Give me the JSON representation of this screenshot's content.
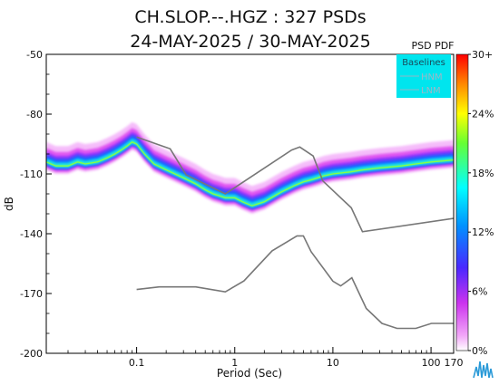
{
  "chart_data": {
    "type": "heatmap",
    "title": "CH.SLOP.--.HGZ : 327 PSDs",
    "subtitle": "24-MAY-2025 / 30-MAY-2025",
    "xlabel": "Period (Sec)",
    "ylabel": "dB",
    "xscale": "log",
    "xlim": [
      0.012,
      170
    ],
    "ylim": [
      -200,
      -50
    ],
    "x_ticks": [
      {
        "value": 0.1,
        "label": "0.1"
      },
      {
        "value": 1,
        "label": "1"
      },
      {
        "value": 10,
        "label": "10"
      },
      {
        "value": 100,
        "label": "100"
      },
      {
        "value": 170,
        "label": "170"
      }
    ],
    "y_ticks": [
      {
        "value": -50,
        "label": "-50"
      },
      {
        "value": -80,
        "label": "-80"
      },
      {
        "value": -110,
        "label": "-110"
      },
      {
        "value": -140,
        "label": "-140"
      },
      {
        "value": -170,
        "label": "-170"
      },
      {
        "value": -200,
        "label": "-200"
      }
    ],
    "colorbar": {
      "title": "PSD PDF",
      "ticks": [
        "30+",
        "24%",
        "18%",
        "12%",
        "6%",
        "0%"
      ]
    },
    "legend": {
      "title": "Baselines",
      "entries": [
        "HNM",
        "LNM"
      ],
      "placement": "top-right",
      "background": "#00e5ee"
    },
    "psd_mode": {
      "name": "",
      "x": [
        0.012,
        0.015,
        0.02,
        0.025,
        0.03,
        0.04,
        0.05,
        0.06,
        0.07,
        0.08,
        0.09,
        0.1,
        0.12,
        0.15,
        0.2,
        0.3,
        0.4,
        0.5,
        0.6,
        0.7,
        0.8,
        1.0,
        1.2,
        1.5,
        2,
        3,
        4,
        5,
        6,
        7,
        8,
        10,
        15,
        20,
        30,
        50,
        70,
        100,
        170
      ],
      "y": [
        -104,
        -106,
        -106,
        -104,
        -105,
        -104,
        -102,
        -100,
        -98,
        -96,
        -94,
        -95,
        -100,
        -105,
        -108,
        -112,
        -115,
        -118,
        -120,
        -121,
        -122,
        -122,
        -124,
        -126,
        -124,
        -119,
        -116,
        -114,
        -113,
        -112,
        -111,
        -110,
        -109,
        -108,
        -107,
        -106,
        -105,
        -104,
        -103
      ]
    },
    "hnm": {
      "name": "HNM",
      "x": [
        0.1,
        0.22,
        0.32,
        0.8,
        3.8,
        4.6,
        6.3,
        7.9,
        15.4,
        20,
        354.8
      ],
      "y": [
        -91.5,
        -97.4,
        -110.5,
        -120,
        -98,
        -96.5,
        -101,
        -113.5,
        -127,
        -139,
        -130
      ]
    },
    "lnm": {
      "name": "LNM",
      "x": [
        0.1,
        0.17,
        0.4,
        0.8,
        1.24,
        2.4,
        4.3,
        5,
        6,
        10,
        12,
        15.6,
        21.9,
        31.6,
        45,
        70,
        101,
        154,
        328
      ],
      "y": [
        -168,
        -166.7,
        -166.7,
        -169.2,
        -163.7,
        -148.6,
        -141.1,
        -141.1,
        -149,
        -163.8,
        -166.2,
        -162.1,
        -177.5,
        -185,
        -187.5,
        -187.5,
        -185,
        -185,
        -185
      ]
    },
    "colors": {
      "hnm_line": "#777777",
      "lnm_line": "#777777",
      "legend_text": "#9ab8c8"
    }
  }
}
